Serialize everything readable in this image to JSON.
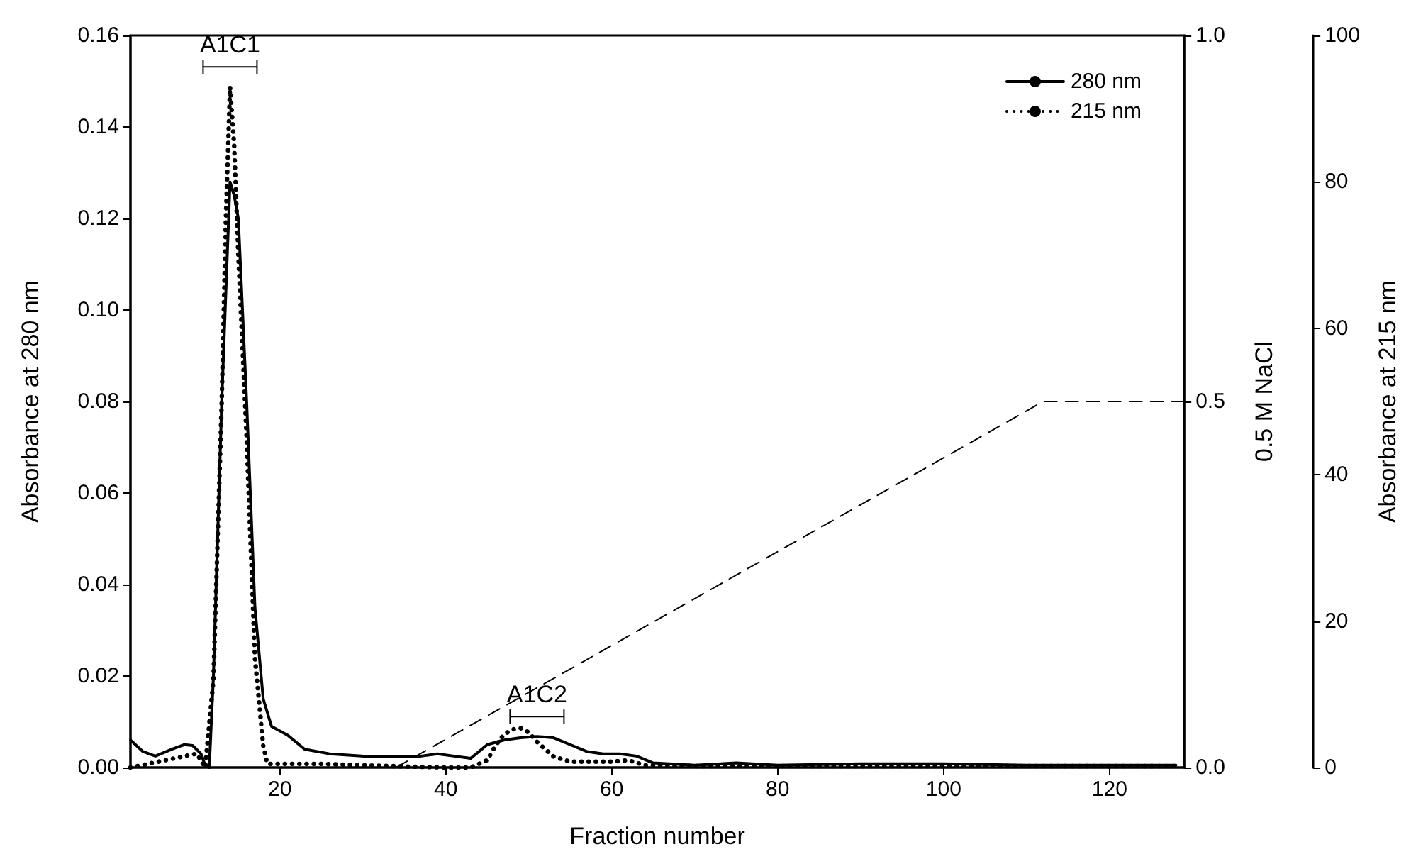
{
  "chart_data": {
    "type": "line",
    "xlabel": "Fraction number",
    "ylabel": "Absorbance at 280 nm",
    "y2label": "0.5 M NaCl",
    "y3label": "Absorbance at 215 nm",
    "xlim": [
      2,
      129
    ],
    "xticks": [
      20,
      40,
      60,
      80,
      100,
      120
    ],
    "ylim": [
      0,
      0.16
    ],
    "yticks": [
      {
        "value": 0,
        "label": "0.00"
      },
      {
        "value": 0.02,
        "label": "0.02"
      },
      {
        "value": 0.04,
        "label": "0.04"
      },
      {
        "value": 0.06,
        "label": "0.06"
      },
      {
        "value": 0.08,
        "label": "0.08"
      },
      {
        "value": 0.1,
        "label": "0.10"
      },
      {
        "value": 0.12,
        "label": "0.12"
      },
      {
        "value": 0.14,
        "label": "0.14"
      },
      {
        "value": 0.16,
        "label": "0.16"
      }
    ],
    "y2lim": [
      0,
      1
    ],
    "y2ticks": [
      {
        "value": 0,
        "label": "0.0"
      },
      {
        "value": 0.5,
        "label": "0.5"
      },
      {
        "value": 1,
        "label": "1.0"
      }
    ],
    "y3lim": [
      0,
      100
    ],
    "y3ticks": [
      0,
      20,
      40,
      60,
      80,
      100
    ],
    "grid": false,
    "legend": "top right",
    "marker": "none",
    "annotations": [
      {
        "text": "A1C1",
        "x": 14,
        "y": 0.1488
      },
      {
        "text": "A1C2",
        "x": 51,
        "y": 0.0068
      }
    ],
    "series": [
      {
        "name": "280 nm",
        "color": "#000000",
        "line_style": "solid",
        "x": [
          2,
          3.5,
          5,
          7,
          8.5,
          9.5,
          10.5,
          11,
          11.5,
          12,
          13,
          14,
          14.5,
          15,
          16,
          17,
          18,
          19,
          21,
          23,
          26,
          30,
          34,
          37,
          39,
          41,
          43,
          45,
          47,
          49,
          51,
          53,
          55,
          57,
          59,
          61,
          63,
          65,
          70,
          75,
          80,
          90,
          100,
          110,
          120,
          128
        ],
        "values": [
          0.006,
          0.0035,
          0.0025,
          0.004,
          0.005,
          0.0048,
          0.003,
          0.0005,
          0,
          0.02,
          0.08,
          0.128,
          0.125,
          0.12,
          0.08,
          0.035,
          0.015,
          0.009,
          0.007,
          0.004,
          0.003,
          0.0025,
          0.0025,
          0.0025,
          0.003,
          0.0025,
          0.002,
          0.005,
          0.006,
          0.0065,
          0.0068,
          0.0065,
          0.005,
          0.0035,
          0.003,
          0.003,
          0.0025,
          0.001,
          0.0005,
          0.001,
          0.0005,
          0.0008,
          0.0008,
          0.0005,
          0.0005,
          0.0005
        ]
      },
      {
        "name": "215 nm",
        "color": "#000000",
        "line_style": "dotted",
        "axis": "y3",
        "x": [
          2,
          10,
          11,
          12,
          13,
          13.5,
          14,
          14.5,
          15,
          16,
          17,
          18,
          18.5,
          20,
          25,
          30,
          40,
          43,
          45,
          46,
          47,
          48,
          49,
          50,
          51,
          53,
          55,
          60,
          62,
          64,
          70,
          80,
          100,
          128
        ],
        "values": [
          0,
          1.9,
          0,
          12,
          50,
          75,
          93,
          85,
          70,
          45,
          15,
          3,
          0.5,
          0.5,
          0.5,
          0.3,
          0,
          0,
          1,
          3,
          4.5,
          5.2,
          5.4,
          4.8,
          3.5,
          1.5,
          0.8,
          0.8,
          1,
          0.3,
          0.2,
          0.2,
          0.2,
          0.2
        ]
      },
      {
        "color": "#000000",
        "line_style": "dashed",
        "axis": "y2",
        "x": [
          34,
          112,
          129
        ],
        "values": [
          0,
          0.5,
          0.5
        ]
      }
    ]
  }
}
